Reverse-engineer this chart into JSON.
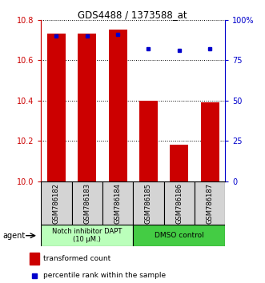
{
  "title": "GDS4488 / 1373588_at",
  "categories": [
    "GSM786182",
    "GSM786183",
    "GSM786184",
    "GSM786185",
    "GSM786186",
    "GSM786187"
  ],
  "bar_values": [
    10.73,
    10.73,
    10.75,
    10.4,
    10.18,
    10.39
  ],
  "percentile_values": [
    90,
    90,
    91,
    82,
    81,
    82
  ],
  "ylim_left": [
    10.0,
    10.8
  ],
  "ylim_right": [
    0,
    100
  ],
  "yticks_left": [
    10.0,
    10.2,
    10.4,
    10.6,
    10.8
  ],
  "yticks_right": [
    0,
    25,
    50,
    75,
    100
  ],
  "yticklabels_right": [
    "0",
    "25",
    "50",
    "75",
    "100%"
  ],
  "bar_color": "#cc0000",
  "dot_color": "#0000cc",
  "group1_label": "Notch inhibitor DAPT\n(10 μM.)",
  "group2_label": "DMSO control",
  "group1_color": "#bbffbb",
  "group2_color": "#44cc44",
  "agent_label": "agent",
  "legend_bar_label": "transformed count",
  "legend_dot_label": "percentile rank within the sample",
  "axis_left_color": "#cc0000",
  "axis_right_color": "#0000cc",
  "cat_bg_color": "#d4d4d4"
}
